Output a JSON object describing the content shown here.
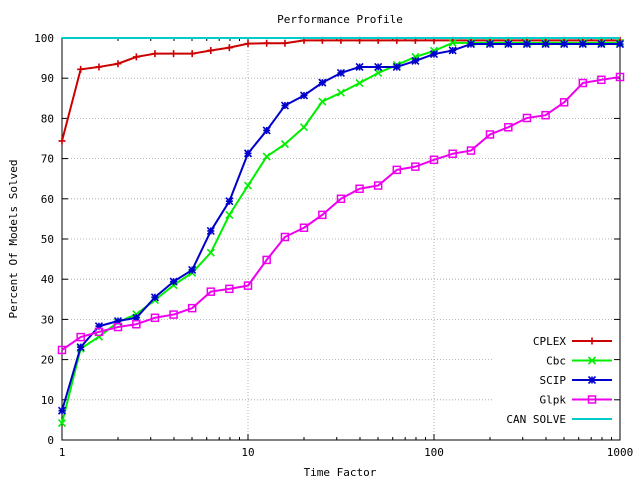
{
  "chart_data": {
    "type": "line",
    "title": "Performance Profile",
    "xlabel": "Time Factor",
    "ylabel": "Percent Of Models Solved",
    "xscale": "log",
    "xlim": [
      1,
      1000
    ],
    "ylim": [
      0,
      100
    ],
    "xticks": [
      1,
      10,
      100,
      1000
    ],
    "yticks": [
      0,
      10,
      20,
      30,
      40,
      50,
      60,
      70,
      80,
      90,
      100
    ],
    "grid": true,
    "legend_position": "bottom-right",
    "series": [
      {
        "name": "CPLEX",
        "color": "#cc0000",
        "marker": "plus",
        "x": [
          1,
          1.26,
          1.58,
          2,
          2.51,
          3.16,
          3.98,
          5.01,
          6.31,
          7.94,
          10,
          12.6,
          15.8,
          20,
          25.1,
          31.6,
          39.8,
          50.1,
          63.1,
          79.4,
          100,
          126,
          158,
          200,
          251,
          316,
          398,
          501,
          631,
          794,
          1000
        ],
        "y": [
          74.4,
          92.2,
          92.8,
          93.6,
          95.3,
          96.1,
          96.1,
          96.1,
          96.9,
          97.6,
          98.6,
          98.7,
          98.7,
          99.4,
          99.4,
          99.4,
          99.4,
          99.4,
          99.4,
          99.4,
          99.4,
          99.4,
          99.4,
          99.4,
          99.4,
          99.4,
          99.4,
          99.4,
          99.4,
          99.4,
          99.4
        ]
      },
      {
        "name": "Cbc",
        "color": "#00ee00",
        "marker": "cross",
        "x": [
          1,
          1.26,
          1.58,
          2,
          2.51,
          3.16,
          3.98,
          5.01,
          6.31,
          7.94,
          10,
          12.6,
          15.8,
          20,
          25.1,
          31.6,
          39.8,
          50.1,
          63.1,
          79.4,
          100,
          126,
          158,
          200,
          251,
          316,
          398,
          501,
          631,
          794,
          1000
        ],
        "y": [
          4.2,
          22.7,
          25.7,
          29.3,
          31.3,
          34.8,
          38.5,
          41.6,
          46.6,
          56.0,
          63.3,
          70.5,
          73.6,
          77.8,
          84.2,
          86.4,
          88.8,
          91.3,
          93.3,
          95.3,
          96.8,
          98.8,
          98.8,
          98.8,
          98.8,
          98.8,
          98.8,
          98.8,
          98.8,
          98.8,
          98.8
        ]
      },
      {
        "name": "SCIP",
        "color": "#0000cc",
        "marker": "star",
        "x": [
          1,
          1.26,
          1.58,
          2,
          2.51,
          3.16,
          3.98,
          5.01,
          6.31,
          7.94,
          10,
          12.6,
          15.8,
          20,
          25.1,
          31.6,
          39.8,
          50.1,
          63.1,
          79.4,
          100,
          126,
          158,
          200,
          251,
          316,
          398,
          501,
          631,
          794,
          1000
        ],
        "y": [
          7.3,
          23.1,
          28.3,
          29.6,
          30.4,
          35.5,
          39.4,
          42.3,
          52.0,
          59.4,
          71.3,
          77.0,
          83.2,
          85.7,
          88.9,
          91.3,
          92.8,
          92.8,
          92.8,
          94.3,
          96.0,
          96.9,
          98.5,
          98.5,
          98.5,
          98.5,
          98.5,
          98.5,
          98.5,
          98.5,
          98.5
        ]
      },
      {
        "name": "Glpk",
        "color": "#ee00ee",
        "marker": "square",
        "x": [
          1,
          1.26,
          1.58,
          2,
          2.51,
          3.16,
          3.98,
          5.01,
          6.31,
          7.94,
          10,
          12.6,
          15.8,
          20,
          25.1,
          31.6,
          39.8,
          50.1,
          63.1,
          79.4,
          100,
          126,
          158,
          200,
          251,
          316,
          398,
          501,
          631,
          794,
          1000
        ],
        "y": [
          22.4,
          25.6,
          26.9,
          28.1,
          28.8,
          30.4,
          31.2,
          32.8,
          36.9,
          37.6,
          38.4,
          44.8,
          50.5,
          52.8,
          56.0,
          60.0,
          62.5,
          63.3,
          67.2,
          68.0,
          69.7,
          71.2,
          72.0,
          76.0,
          77.8,
          80.1,
          80.8,
          84.0,
          88.8,
          89.6,
          90.3
        ]
      },
      {
        "name": "CAN SOLVE",
        "color": "#00cccc",
        "marker": "none",
        "x": [
          1,
          1000
        ],
        "y": [
          100,
          100
        ]
      }
    ]
  }
}
